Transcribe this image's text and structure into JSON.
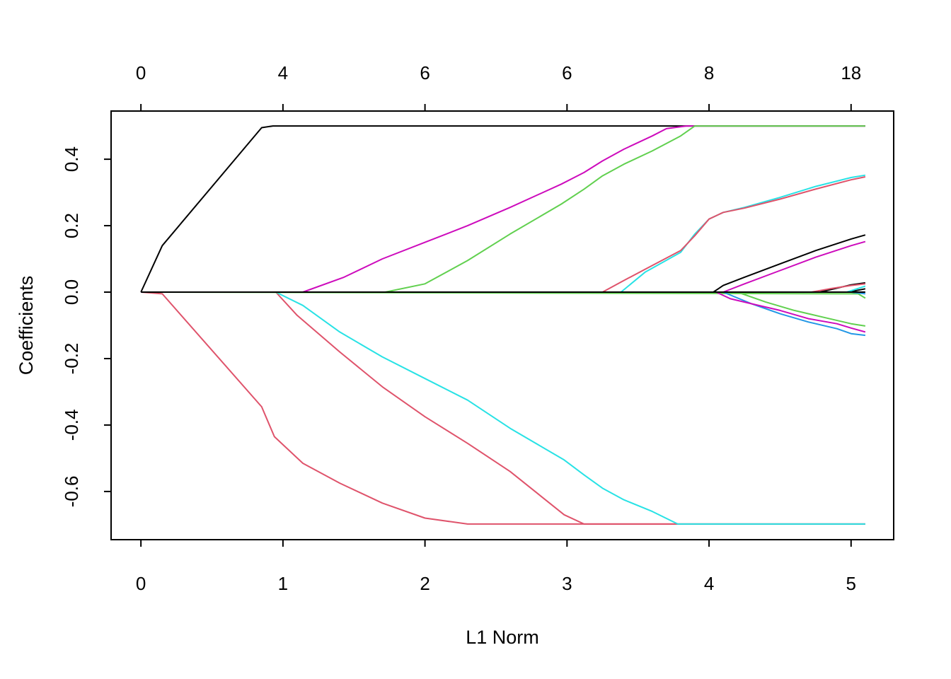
{
  "chart_data": {
    "type": "line",
    "title": "",
    "xlabel": "L1 Norm",
    "ylabel": "Coefficients",
    "xlim": [
      -0.21,
      5.3
    ],
    "ylim": [
      -0.745,
      0.545
    ],
    "x_ticks": [
      0,
      1,
      2,
      3,
      4,
      5
    ],
    "x_tick_labels": [
      "0",
      "1",
      "2",
      "3",
      "4",
      "5"
    ],
    "y_ticks": [
      -0.6,
      -0.4,
      -0.2,
      0.0,
      0.2,
      0.4
    ],
    "y_tick_labels": [
      "-0.6",
      "-0.4",
      "-0.2",
      "0.0",
      "0.2",
      "0.4"
    ],
    "top_axis": {
      "tick_positions": [
        0,
        1,
        2,
        3,
        4,
        5
      ],
      "tick_labels": [
        "0",
        "4",
        "6",
        "6",
        "8",
        "18"
      ]
    },
    "grid": false,
    "legend": "none",
    "series": [
      {
        "color": "#000000",
        "x": [
          0,
          0.15,
          0.85,
          0.93,
          1.0,
          5.1
        ],
        "y": [
          0,
          0.14,
          0.495,
          0.5,
          0.5,
          0.5
        ]
      },
      {
        "color": "#DF536B",
        "x": [
          0,
          0.15,
          0.85,
          0.94,
          1.14,
          1.4,
          1.7,
          2.0,
          2.3,
          3.0,
          5.1
        ],
        "y": [
          0,
          -0.005,
          -0.345,
          -0.435,
          -0.515,
          -0.575,
          -0.635,
          -0.68,
          -0.698,
          -0.698,
          -0.698
        ]
      },
      {
        "color": "#DF536B",
        "x": [
          0,
          0.95,
          1.1,
          1.4,
          1.7,
          2.0,
          2.3,
          2.6,
          2.98,
          3.12,
          5.1
        ],
        "y": [
          0,
          0,
          -0.07,
          -0.18,
          -0.285,
          -0.375,
          -0.455,
          -0.54,
          -0.67,
          -0.698,
          -0.698
        ]
      },
      {
        "color": "#28E2E5",
        "x": [
          0,
          0.95,
          1.14,
          1.4,
          1.7,
          2.0,
          2.3,
          2.6,
          2.98,
          3.12,
          3.25,
          3.4,
          3.6,
          3.78,
          5.1
        ],
        "y": [
          0,
          0,
          -0.04,
          -0.12,
          -0.195,
          -0.26,
          -0.325,
          -0.41,
          -0.505,
          -0.55,
          -0.59,
          -0.625,
          -0.66,
          -0.698,
          -0.698
        ]
      },
      {
        "color": "#CD0BBC",
        "x": [
          0,
          1.14,
          1.43,
          1.7,
          2.0,
          2.3,
          2.6,
          2.96,
          3.12,
          3.25,
          3.4,
          3.6,
          3.7,
          3.84,
          5.1
        ],
        "y": [
          0,
          0,
          0.045,
          0.1,
          0.15,
          0.2,
          0.255,
          0.325,
          0.36,
          0.395,
          0.43,
          0.47,
          0.492,
          0.5,
          0.5
        ]
      },
      {
        "color": "#61D04F",
        "x": [
          0,
          1.72,
          2.0,
          2.3,
          2.6,
          2.96,
          3.12,
          3.25,
          3.4,
          3.6,
          3.8,
          3.9,
          5.1
        ],
        "y": [
          0,
          0,
          0.025,
          0.095,
          0.175,
          0.265,
          0.31,
          0.35,
          0.385,
          0.425,
          0.47,
          0.5,
          0.5
        ]
      },
      {
        "color": "#28E2E5",
        "x": [
          0,
          3.38,
          3.55,
          3.8,
          3.9,
          4.0,
          4.1,
          4.25,
          4.5,
          4.75,
          5.0,
          5.1
        ],
        "y": [
          0,
          0,
          0.06,
          0.12,
          0.175,
          0.22,
          0.24,
          0.255,
          0.285,
          0.318,
          0.345,
          0.352
        ]
      },
      {
        "color": "#DF536B",
        "x": [
          0,
          3.25,
          3.4,
          3.6,
          3.8,
          3.9,
          4.0,
          4.1,
          4.25,
          4.5,
          4.75,
          5.0,
          5.1
        ],
        "y": [
          0,
          0,
          0.035,
          0.08,
          0.125,
          0.17,
          0.22,
          0.24,
          0.253,
          0.28,
          0.31,
          0.338,
          0.347
        ]
      },
      {
        "color": "#000000",
        "x": [
          0,
          4.03,
          4.1,
          4.25,
          4.5,
          4.75,
          5.0,
          5.1
        ],
        "y": [
          0,
          0,
          0.02,
          0.045,
          0.085,
          0.125,
          0.16,
          0.172
        ]
      },
      {
        "color": "#CD0BBC",
        "x": [
          0,
          4.1,
          4.25,
          4.5,
          4.75,
          5.0,
          5.1
        ],
        "y": [
          0,
          0,
          0.025,
          0.065,
          0.105,
          0.14,
          0.152
        ]
      },
      {
        "color": "#000000",
        "x": [
          0,
          4.78,
          4.9,
          5.0,
          5.1
        ],
        "y": [
          0,
          0,
          0.012,
          0.022,
          0.028
        ]
      },
      {
        "color": "#DF536B",
        "x": [
          0,
          4.72,
          4.85,
          5.0,
          5.1
        ],
        "y": [
          0,
          0,
          0.01,
          0.02,
          0.025
        ]
      },
      {
        "color": "#000000",
        "x": [
          0,
          4.98,
          5.1
        ],
        "y": [
          0,
          0,
          0.01
        ]
      },
      {
        "color": "#28E2E5",
        "x": [
          0,
          4.97,
          5.1
        ],
        "y": [
          0,
          0,
          0.018
        ]
      },
      {
        "color": "#61D04F",
        "x": [
          0,
          5.05,
          5.1
        ],
        "y": [
          0,
          -0.005,
          -0.018
        ]
      },
      {
        "color": "#2297E6",
        "x": [
          0,
          4.9,
          5.0,
          5.1
        ],
        "y": [
          0,
          0,
          0.0,
          -0.005
        ]
      },
      {
        "color": "#61D04F",
        "x": [
          0,
          4.2,
          4.4,
          4.6,
          4.8,
          5.0,
          5.1
        ],
        "y": [
          0,
          0,
          -0.03,
          -0.055,
          -0.075,
          -0.095,
          -0.102
        ]
      },
      {
        "color": "#2297E6",
        "x": [
          0,
          4.1,
          4.3,
          4.5,
          4.7,
          4.9,
          5.0,
          5.1
        ],
        "y": [
          0,
          0,
          -0.035,
          -0.065,
          -0.09,
          -0.11,
          -0.125,
          -0.13
        ]
      },
      {
        "color": "#CD0BBC",
        "x": [
          0,
          4.05,
          4.15,
          4.3,
          4.5,
          4.7,
          4.9,
          5.0,
          5.1
        ],
        "y": [
          0,
          0,
          -0.02,
          -0.035,
          -0.055,
          -0.08,
          -0.095,
          -0.108,
          -0.12
        ]
      },
      {
        "color": "#000000",
        "x": [
          0,
          5.1
        ],
        "y": [
          0,
          0
        ]
      }
    ]
  }
}
